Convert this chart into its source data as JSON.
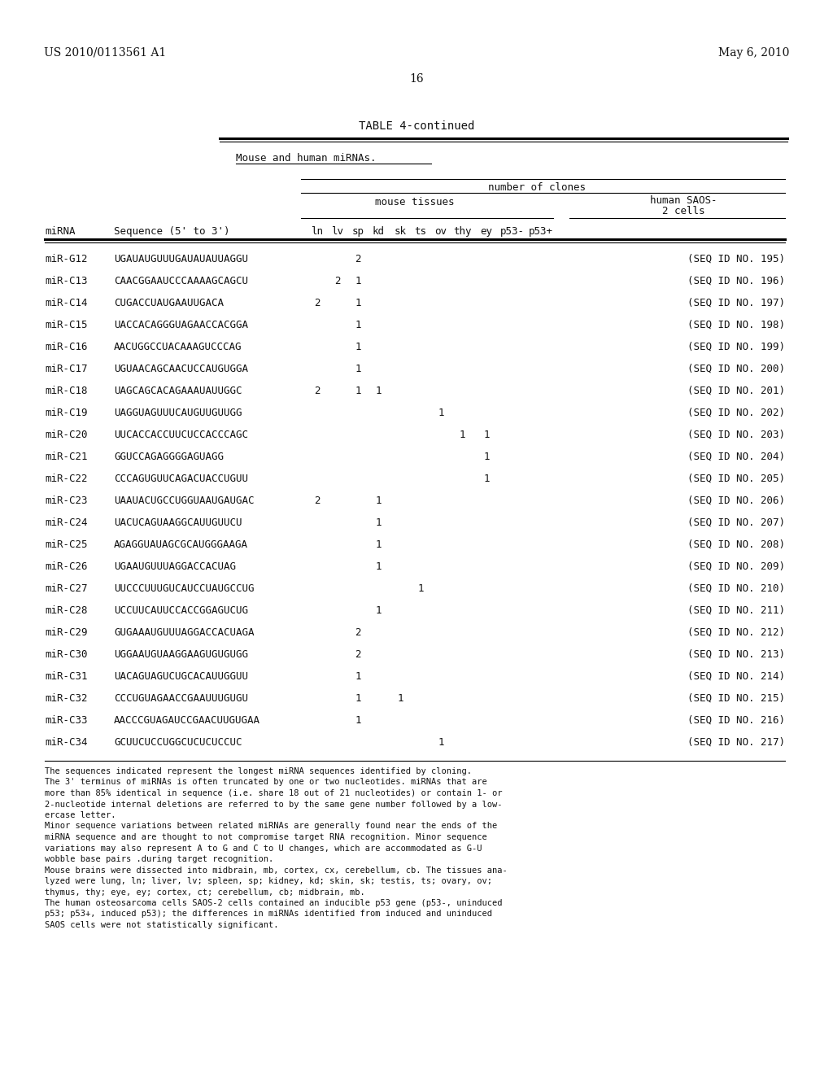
{
  "bg_color": "#ffffff",
  "header_left": "US 2010/0113561 A1",
  "header_right": "May 6, 2010",
  "page_number": "16",
  "table_title": "TABLE 4-continued",
  "subtitle": "Mouse and human miRNAs.",
  "rows": [
    {
      "mirna": "miR-G12",
      "seq": "UGAUAUGUUUGAUAUAUUAGGU",
      "ln": "",
      "lv": "",
      "sp": "2",
      "kd": "",
      "sk": "",
      "ts": "",
      "ov": "",
      "thy": "",
      "ey": "",
      "p53m": "",
      "p53p": "",
      "seqid": "(SEQ ID NO. 195)"
    },
    {
      "mirna": "miR-C13",
      "seq": "CAACGGAAUCCCAAAAGCAGCU",
      "ln": "",
      "lv": "2",
      "sp": "1",
      "kd": "",
      "sk": "",
      "ts": "",
      "ov": "",
      "thy": "",
      "ey": "",
      "p53m": "",
      "p53p": "",
      "seqid": "(SEQ ID NO. 196)"
    },
    {
      "mirna": "miR-C14",
      "seq": "CUGACCUAUGAAUUGACA",
      "ln": "2",
      "lv": "",
      "sp": "1",
      "kd": "",
      "sk": "",
      "ts": "",
      "ov": "",
      "thy": "",
      "ey": "",
      "p53m": "",
      "p53p": "",
      "seqid": "(SEQ ID NO. 197)"
    },
    {
      "mirna": "miR-C15",
      "seq": "UACCACAGGGUAGAACCACGGA",
      "ln": "",
      "lv": "",
      "sp": "1",
      "kd": "",
      "sk": "",
      "ts": "",
      "ov": "",
      "thy": "",
      "ey": "",
      "p53m": "",
      "p53p": "",
      "seqid": "(SEQ ID NO. 198)"
    },
    {
      "mirna": "miR-C16",
      "seq": "AACUGGCCUACAAAGUCCCAG",
      "ln": "",
      "lv": "",
      "sp": "1",
      "kd": "",
      "sk": "",
      "ts": "",
      "ov": "",
      "thy": "",
      "ey": "",
      "p53m": "",
      "p53p": "",
      "seqid": "(SEQ ID NO. 199)"
    },
    {
      "mirna": "miR-C17",
      "seq": "UGUAACAGCAACUCCAUGUGGA",
      "ln": "",
      "lv": "",
      "sp": "1",
      "kd": "",
      "sk": "",
      "ts": "",
      "ov": "",
      "thy": "",
      "ey": "",
      "p53m": "",
      "p53p": "",
      "seqid": "(SEQ ID NO. 200)"
    },
    {
      "mirna": "miR-C18",
      "seq": "UAGCAGCACAGAAAUAUUGGC",
      "ln": "2",
      "lv": "",
      "sp": "1",
      "kd": "1",
      "sk": "",
      "ts": "",
      "ov": "",
      "thy": "",
      "ey": "",
      "p53m": "",
      "p53p": "",
      "seqid": "(SEQ ID NO. 201)"
    },
    {
      "mirna": "miR-C19",
      "seq": "UAGGUAGUUUCAUGUUGUUGG",
      "ln": "",
      "lv": "",
      "sp": "",
      "kd": "",
      "sk": "",
      "ts": "",
      "ov": "1",
      "thy": "",
      "ey": "",
      "p53m": "",
      "p53p": "",
      "seqid": "(SEQ ID NO. 202)"
    },
    {
      "mirna": "miR-C20",
      "seq": "UUCACCACCUUCUCCACCCAGC",
      "ln": "",
      "lv": "",
      "sp": "",
      "kd": "",
      "sk": "",
      "ts": "",
      "ov": "",
      "thy": "1",
      "ey": "1",
      "p53m": "",
      "p53p": "",
      "seqid": "(SEQ ID NO. 203)"
    },
    {
      "mirna": "miR-C21",
      "seq": "GGUCCAGAGGGGAGUAGG",
      "ln": "",
      "lv": "",
      "sp": "",
      "kd": "",
      "sk": "",
      "ts": "",
      "ov": "",
      "thy": "",
      "ey": "1",
      "p53m": "",
      "p53p": "",
      "seqid": "(SEQ ID NO. 204)"
    },
    {
      "mirna": "miR-C22",
      "seq": "CCCAGUGUUCAGACUACCUGUU",
      "ln": "",
      "lv": "",
      "sp": "",
      "kd": "",
      "sk": "",
      "ts": "",
      "ov": "",
      "thy": "",
      "ey": "1",
      "p53m": "",
      "p53p": "",
      "seqid": "(SEQ ID NO. 205)"
    },
    {
      "mirna": "miR-C23",
      "seq": "UAAUACUGCCUGGUAAUGAUGAC",
      "ln": "2",
      "lv": "",
      "sp": "",
      "kd": "1",
      "sk": "",
      "ts": "",
      "ov": "",
      "thy": "",
      "ey": "",
      "p53m": "",
      "p53p": "",
      "seqid": "(SEQ ID NO. 206)"
    },
    {
      "mirna": "miR-C24",
      "seq": "UACUCAGUAAGGCAUUGUUCU",
      "ln": "",
      "lv": "",
      "sp": "",
      "kd": "1",
      "sk": "",
      "ts": "",
      "ov": "",
      "thy": "",
      "ey": "",
      "p53m": "",
      "p53p": "",
      "seqid": "(SEQ ID NO. 207)"
    },
    {
      "mirna": "miR-C25",
      "seq": "AGAGGUAUAGCGCAUGGGAAGA",
      "ln": "",
      "lv": "",
      "sp": "",
      "kd": "1",
      "sk": "",
      "ts": "",
      "ov": "",
      "thy": "",
      "ey": "",
      "p53m": "",
      "p53p": "",
      "seqid": "(SEQ ID NO. 208)"
    },
    {
      "mirna": "miR-C26",
      "seq": "UGAAUGUUUAGGACCACUAG",
      "ln": "",
      "lv": "",
      "sp": "",
      "kd": "1",
      "sk": "",
      "ts": "",
      "ov": "",
      "thy": "",
      "ey": "",
      "p53m": "",
      "p53p": "",
      "seqid": "(SEQ ID NO. 209)"
    },
    {
      "mirna": "miR-C27",
      "seq": "UUCCCUUUGUCAUCCUAUGCCUG",
      "ln": "",
      "lv": "",
      "sp": "",
      "kd": "",
      "sk": "",
      "ts": "1",
      "ov": "",
      "thy": "",
      "ey": "",
      "p53m": "",
      "p53p": "",
      "seqid": "(SEQ ID NO. 210)"
    },
    {
      "mirna": "miR-C28",
      "seq": "UCCUUCAUUCCACCGGAGUCUG",
      "ln": "",
      "lv": "",
      "sp": "",
      "kd": "1",
      "sk": "",
      "ts": "",
      "ov": "",
      "thy": "",
      "ey": "",
      "p53m": "",
      "p53p": "",
      "seqid": "(SEQ ID NO. 211)"
    },
    {
      "mirna": "miR-C29",
      "seq": "GUGAAAUGUUUAGGACCACUAGA",
      "ln": "",
      "lv": "",
      "sp": "2",
      "kd": "",
      "sk": "",
      "ts": "",
      "ov": "",
      "thy": "",
      "ey": "",
      "p53m": "",
      "p53p": "",
      "seqid": "(SEQ ID NO. 212)"
    },
    {
      "mirna": "miR-C30",
      "seq": "UGGAAUGUAAGGAAGUGUGUGG",
      "ln": "",
      "lv": "",
      "sp": "2",
      "kd": "",
      "sk": "",
      "ts": "",
      "ov": "",
      "thy": "",
      "ey": "",
      "p53m": "",
      "p53p": "",
      "seqid": "(SEQ ID NO. 213)"
    },
    {
      "mirna": "miR-C31",
      "seq": "UACAGUAGUCUGCACAUUGGUU",
      "ln": "",
      "lv": "",
      "sp": "1",
      "kd": "",
      "sk": "",
      "ts": "",
      "ov": "",
      "thy": "",
      "ey": "",
      "p53m": "",
      "p53p": "",
      "seqid": "(SEQ ID NO. 214)"
    },
    {
      "mirna": "miR-C32",
      "seq": "CCCUGUAGAACCGAAUUUGUGU",
      "ln": "",
      "lv": "",
      "sp": "1",
      "kd": "",
      "sk": "1",
      "ts": "",
      "ov": "",
      "thy": "",
      "ey": "",
      "p53m": "",
      "p53p": "",
      "seqid": "(SEQ ID NO. 215)"
    },
    {
      "mirna": "miR-C33",
      "seq": "AACCCGUAGAUCCGAACUUGUGAA",
      "ln": "",
      "lv": "",
      "sp": "1",
      "kd": "",
      "sk": "",
      "ts": "",
      "ov": "",
      "thy": "",
      "ey": "",
      "p53m": "",
      "p53p": "",
      "seqid": "(SEQ ID NO. 216)"
    },
    {
      "mirna": "miR-C34",
      "seq": "GCUUCUCCUGGCUCUCUCCUC",
      "ln": "",
      "lv": "",
      "sp": "",
      "kd": "",
      "sk": "",
      "ts": "",
      "ov": "1",
      "thy": "",
      "ey": "",
      "p53m": "",
      "p53p": "",
      "seqid": "(SEQ ID NO. 217)"
    }
  ],
  "col_names": [
    "ln",
    "lv",
    "sp",
    "kd",
    "sk",
    "ts",
    "ov",
    "thy",
    "ey",
    "p53-",
    "p53+"
  ],
  "col_keys": [
    "ln",
    "lv",
    "sp",
    "kd",
    "sk",
    "ts",
    "ov",
    "thy",
    "ey",
    "p53m",
    "p53p"
  ],
  "footnote_lines": [
    "The sequences indicated represent the longest miRNA sequences identified by cloning.",
    "The 3' terminus of miRNAs is often truncated by one or two nucleotides. miRNAs that are",
    "more than 85% identical in sequence (i.e. share 18 out of 21 nucleotides) or contain 1- or",
    "2-nucleotide internal deletions are referred to by the same gene number followed by a low-",
    "ercase letter.",
    "Minor sequence variations between related miRNAs are generally found near the ends of the",
    "miRNA sequence and are thought to not compromise target RNA recognition. Minor sequence",
    "variations may also represent A to G and C to U changes, which are accommodated as G-U",
    "wobble base pairs .during target recognition.",
    "Mouse brains were dissected into midbrain, mb, cortex, cx, cerebellum, cb. The tissues ana-",
    "lyzed were lung, ln; liver, lv; spleen, sp; kidney, kd; skin, sk; testis, ts; ovary, ov;",
    "thymus, thy; eye, ey; cortex, ct; cerebellum, cb; midbrain, mb.",
    "The human osteosarcoma cells SAOS-2 cells contained an inducible p53 gene (p53-, uninduced",
    "p53; p53+, induced p53); the differences in miRNAs identified from induced and uninduced",
    "SAOS cells were not statistically significant."
  ]
}
